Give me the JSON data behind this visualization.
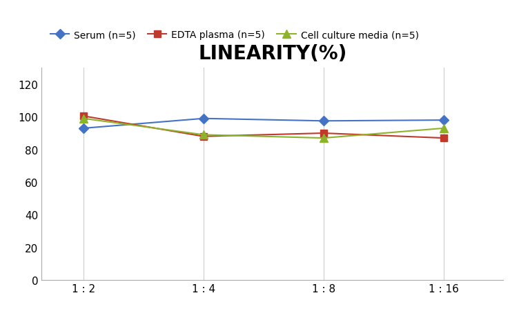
{
  "title": "LINEARITY(%)",
  "x_labels": [
    "1 : 2",
    "1 : 4",
    "1 : 8",
    "1 : 16"
  ],
  "x_positions": [
    0,
    1,
    2,
    3
  ],
  "series": [
    {
      "name": "Serum (n=5)",
      "values": [
        93,
        99,
        97.5,
        98
      ],
      "color": "#4472C4",
      "marker": "D",
      "markersize": 7,
      "linewidth": 1.5
    },
    {
      "name": "EDTA plasma (n=5)",
      "values": [
        100.5,
        88,
        90,
        87
      ],
      "color": "#C0392B",
      "marker": "s",
      "markersize": 7,
      "linewidth": 1.5
    },
    {
      "name": "Cell culture media (n=5)",
      "values": [
        99,
        89,
        87,
        93
      ],
      "color": "#8DB32A",
      "marker": "^",
      "markersize": 8,
      "linewidth": 1.5
    }
  ],
  "ylim": [
    0,
    130
  ],
  "yticks": [
    0,
    20,
    40,
    60,
    80,
    100,
    120
  ],
  "background_color": "#ffffff",
  "grid_color": "#cccccc",
  "title_fontsize": 20,
  "legend_fontsize": 10,
  "tick_fontsize": 11
}
